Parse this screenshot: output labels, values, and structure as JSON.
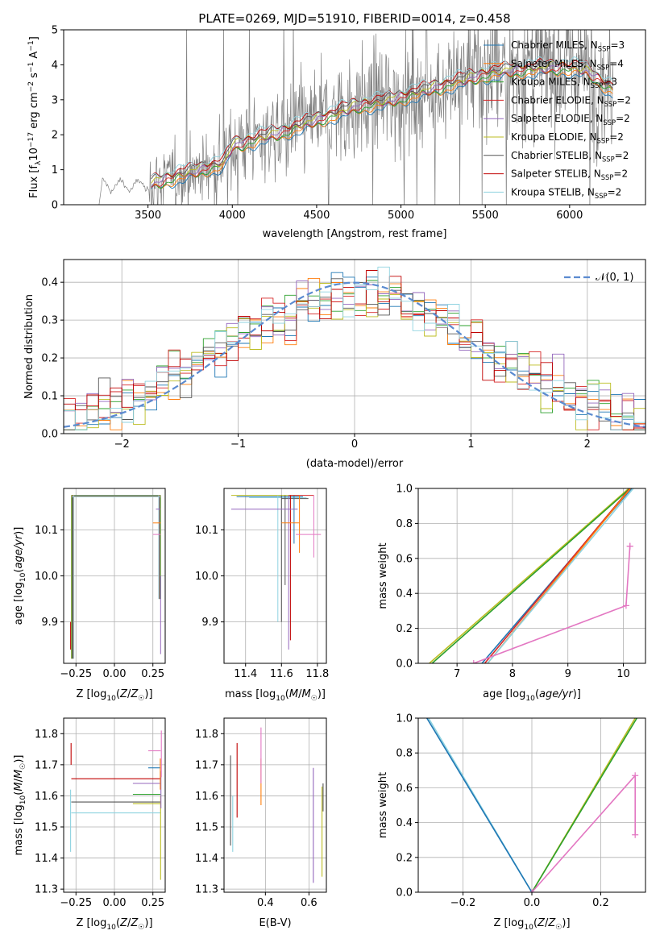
{
  "figure_title": "PLATE=0269, MJD=51910, FIBERID=0014, z=0.458",
  "chart_data": [
    {
      "id": "spectrum",
      "type": "line",
      "title": "PLATE=0269, MJD=51910, FIBERID=0014, z=0.458",
      "xlabel": "wavelength [Angstrom, rest frame]",
      "ylabel": "Flux [f_λ 10^-17 erg cm^-2 s^-1 A^-1]",
      "xlim": [
        3000,
        6450
      ],
      "ylim": [
        0,
        5
      ],
      "x_ticks": [
        3500,
        4000,
        4500,
        5000,
        5500,
        6000
      ],
      "y_ticks": [
        0,
        1,
        2,
        3,
        4,
        5
      ],
      "grid": false,
      "legend_position": "top-right",
      "series": [
        {
          "name": "Chabrier MILES, N_SSP=3",
          "color": "#1f77b4"
        },
        {
          "name": "Salpeter MILES, N_SSP=4",
          "color": "#ff7f0e"
        },
        {
          "name": "Kroupa MILES, N_SSP=3",
          "color": "#2ca02c"
        },
        {
          "name": "Chabrier ELODIE, N_SSP=2",
          "color": "#d62728"
        },
        {
          "name": "Salpeter ELODIE, N_SSP=2",
          "color": "#9467bd"
        },
        {
          "name": "Kroupa ELODIE, N_SSP=2",
          "color": "#bcbd22"
        },
        {
          "name": "Chabrier STELIB, N_SSP=2",
          "color": "#555555"
        },
        {
          "name": "Salpeter STELIB, N_SSP=2",
          "color": "#c00000"
        },
        {
          "name": "Kroupa STELIB, N_SSP=2",
          "color": "#8fd3e0"
        }
      ],
      "data_color": "#808080",
      "model_continuum": {
        "x": [
          3510,
          3650,
          3800,
          3950,
          4000,
          4150,
          4300,
          4450,
          4600,
          4750,
          4900,
          5050,
          5200,
          5350,
          5500,
          5650,
          5800,
          5950,
          6100,
          6250
        ],
        "y": [
          0.6,
          0.8,
          1.0,
          1.2,
          1.7,
          1.9,
          2.1,
          2.35,
          2.6,
          2.85,
          2.95,
          3.15,
          3.35,
          3.55,
          3.75,
          3.85,
          3.9,
          3.95,
          3.85,
          3.3
        ]
      }
    },
    {
      "id": "residuals",
      "type": "line",
      "xlabel": "(data-model)/error",
      "ylabel": "Normed distribution",
      "xlim": [
        -2.5,
        2.5
      ],
      "ylim": [
        0,
        0.46
      ],
      "x_ticks": [
        -2,
        -1,
        0,
        1,
        2
      ],
      "y_ticks": [
        0.0,
        0.1,
        0.2,
        0.3,
        0.4
      ],
      "grid": true,
      "legend": [
        {
          "name": "𝒩(0, 1)",
          "color": "#5b8bd0",
          "style": "dashed"
        }
      ],
      "legend_position": "top-right",
      "gaussian": {
        "mean": 0,
        "sigma": 1
      },
      "histogram_bin_width": 0.1
    },
    {
      "id": "age_vs_Z",
      "type": "scatter",
      "xlabel": "Z [log10(Z/Z☉)]",
      "ylabel": "age [log10(age/yr)]",
      "xlim": [
        -0.33,
        0.33
      ],
      "ylim": [
        9.81,
        10.19
      ],
      "x_ticks": [
        -0.25,
        0.0,
        0.25
      ],
      "y_ticks": [
        9.9,
        10.0,
        10.1
      ],
      "grid": true
    },
    {
      "id": "age_vs_mass",
      "type": "scatter",
      "xlabel": "mass [log10(M/M☉)]",
      "xlim": [
        11.28,
        11.85
      ],
      "ylim": [
        9.81,
        10.19
      ],
      "x_ticks": [
        11.4,
        11.6,
        11.8
      ],
      "y_ticks": [
        9.9,
        10.0,
        10.1
      ],
      "grid": true
    },
    {
      "id": "cumulative_age",
      "type": "line",
      "xlabel": "age [log10(age/yr)]",
      "ylabel": "mass weight",
      "xlim": [
        6.3,
        10.4
      ],
      "ylim": [
        0,
        1
      ],
      "x_ticks": [
        7,
        8,
        9,
        10
      ],
      "y_ticks": [
        0.0,
        0.2,
        0.4,
        0.6,
        0.8,
        1.0
      ],
      "grid": true,
      "series": [
        {
          "color": "#bcbd22",
          "x": [
            6.5,
            10.1
          ],
          "y": [
            0,
            1
          ]
        },
        {
          "color": "#2ca02c",
          "x": [
            6.55,
            10.12
          ],
          "y": [
            0,
            1
          ]
        },
        {
          "color": "#1f77b4",
          "x": [
            7.45,
            10.15
          ],
          "y": [
            0,
            1
          ]
        },
        {
          "color": "#d62728",
          "x": [
            7.5,
            10.12
          ],
          "y": [
            0,
            1
          ]
        },
        {
          "color": "#ff7f0e",
          "x": [
            7.55,
            10.13
          ],
          "y": [
            0,
            1
          ]
        },
        {
          "color": "#8fd3e0",
          "x": [
            7.55,
            10.18
          ],
          "y": [
            0,
            1
          ]
        },
        {
          "color": "#e377c2",
          "x": [
            7.3,
            10.05,
            10.12,
            10.12
          ],
          "y": [
            0,
            0.33,
            0.67,
            0.67
          ]
        }
      ]
    },
    {
      "id": "mass_vs_Z",
      "type": "scatter",
      "xlabel": "Z [log10(Z/Z☉)]",
      "ylabel": "mass [log10(M/M☉)]",
      "xlim": [
        -0.33,
        0.33
      ],
      "ylim": [
        11.29,
        11.85
      ],
      "x_ticks": [
        -0.25,
        0.0,
        0.25
      ],
      "y_ticks": [
        11.3,
        11.4,
        11.5,
        11.6,
        11.7,
        11.8
      ],
      "grid": true
    },
    {
      "id": "mass_vs_EBV",
      "type": "scatter",
      "xlabel": "E(B-V)",
      "xlim": [
        0.21,
        0.68
      ],
      "ylim": [
        11.29,
        11.85
      ],
      "x_ticks": [
        0.4,
        0.6
      ],
      "y_ticks": [
        11.3,
        11.4,
        11.5,
        11.6,
        11.7,
        11.8
      ],
      "grid": true
    },
    {
      "id": "cumulative_Z",
      "type": "line",
      "xlabel": "Z [log10(Z/Z☉)]",
      "ylabel": "mass weight",
      "xlim": [
        -0.33,
        0.33
      ],
      "ylim": [
        0,
        1
      ],
      "x_ticks": [
        -0.2,
        0.0,
        0.2
      ],
      "y_ticks": [
        0.0,
        0.2,
        0.4,
        0.6,
        0.8,
        1.0
      ],
      "grid": true,
      "series": [
        {
          "color": "#8fd3e0",
          "x": [
            -0.3,
            0.0
          ],
          "y": [
            1,
            0
          ]
        },
        {
          "color": "#1f77b4",
          "x": [
            -0.305,
            0.0
          ],
          "y": [
            1,
            0
          ]
        },
        {
          "color": "#bcbd22",
          "x": [
            0.0,
            0.3
          ],
          "y": [
            0,
            1
          ]
        },
        {
          "color": "#2ca02c",
          "x": [
            0.0,
            0.305
          ],
          "y": [
            0,
            1
          ]
        },
        {
          "color": "#e377c2",
          "x": [
            0.0,
            0.3,
            0.3
          ],
          "y": [
            0,
            0.67,
            0.33
          ]
        }
      ]
    }
  ]
}
